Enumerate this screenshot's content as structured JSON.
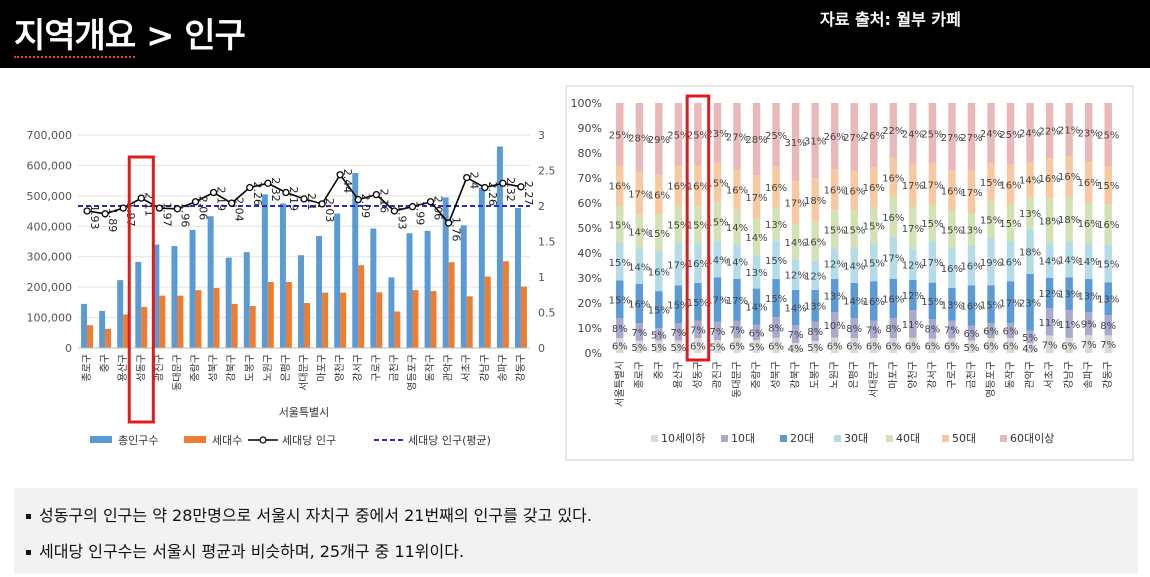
{
  "header": {
    "title_main": "지역개요",
    "title_rest": " > 인구",
    "source": "자료 출처: 월부 카페"
  },
  "chart_data": [
    {
      "type": "bar",
      "categories": [
        "종로구",
        "중구",
        "용산구",
        "성동구",
        "광진구",
        "동대문구",
        "중랑구",
        "성북구",
        "강북구",
        "도봉구",
        "노원구",
        "은평구",
        "서대문구",
        "마포구",
        "양천구",
        "강서구",
        "구로구",
        "금천구",
        "영등포구",
        "동작구",
        "관악구",
        "서초구",
        "강남구",
        "송파구",
        "강동구"
      ],
      "xlabel": "서울특별시",
      "ylim": [
        0,
        700000
      ],
      "y2lim": [
        0,
        3
      ],
      "yticks": [
        "0",
        "100,000",
        "200,000",
        "300,000",
        "400,000",
        "500,000",
        "600,000",
        "700,000"
      ],
      "y2ticks": [
        "0",
        "0.5",
        "1",
        "1.5",
        "2",
        "2.5",
        "3"
      ],
      "series": [
        {
          "name": "총인구수",
          "kind": "bar",
          "color": "#5b9bd5",
          "values": [
            145000,
            122000,
            223000,
            283000,
            340000,
            335000,
            388000,
            433000,
            297000,
            315000,
            505000,
            475000,
            305000,
            368000,
            442000,
            575000,
            393000,
            232000,
            377000,
            385000,
            495000,
            403000,
            527000,
            662000,
            460000
          ]
        },
        {
          "name": "세대수",
          "kind": "bar",
          "color": "#ed7d31",
          "values": [
            75000,
            63000,
            110000,
            135000,
            172000,
            172000,
            190000,
            197000,
            145000,
            138000,
            217000,
            217000,
            148000,
            182000,
            182000,
            272000,
            183000,
            120000,
            190000,
            187000,
            282000,
            170000,
            235000,
            285000,
            202000
          ]
        },
        {
          "name": "세대당 인구",
          "kind": "line",
          "axis": "right",
          "color": "#000000",
          "values": [
            1.93,
            1.89,
            1.97,
            2.11,
            1.97,
            1.96,
            2.06,
            2.19,
            2.04,
            2.26,
            2.32,
            2.19,
            2.1,
            2.03,
            2.44,
            2.09,
            2.16,
            1.93,
            1.99,
            2.06,
            1.76,
            2.4,
            2.26,
            2.32,
            2.27
          ]
        },
        {
          "name": "세대당 인구(평균)",
          "kind": "dashed",
          "axis": "right",
          "color": "#2b2bbf",
          "value": 2.0
        }
      ],
      "data_labels": [
        "1.93",
        "1.89",
        "1.97",
        "2.11",
        "1.97",
        "1.96",
        "2.06",
        "2.19",
        "2.04",
        "2.26",
        "2.32",
        "2.19",
        "2.1",
        "2.03",
        "2.44",
        "2.09",
        "2.16",
        "1.93",
        "1.99",
        "2.06",
        "1.76",
        "2.4",
        "2.26",
        "2.32",
        "2.27"
      ],
      "highlight_category": "성동구",
      "legend_position": "bottom"
    },
    {
      "type": "bar",
      "stacked": true,
      "percent": true,
      "categories": [
        "서울특별시",
        "종로구",
        "중구",
        "용산구",
        "성동구",
        "광진구",
        "동대문구",
        "중랑구",
        "성북구",
        "강북구",
        "도봉구",
        "노원구",
        "은평구",
        "서대문구",
        "마포구",
        "양천구",
        "강서구",
        "구로구",
        "금천구",
        "영등포구",
        "동작구",
        "관악구",
        "서초구",
        "강남구",
        "송파구",
        "강동구"
      ],
      "yticks": [
        "0%",
        "10%",
        "20%",
        "30%",
        "40%",
        "50%",
        "60%",
        "70%",
        "80%",
        "90%",
        "100%"
      ],
      "series": [
        {
          "name": "10세이하",
          "color": "#d9d9d9",
          "values": [
            6,
            5,
            5,
            5,
            6,
            5,
            6,
            5,
            6,
            4,
            5,
            6,
            6,
            6,
            6,
            6,
            6,
            6,
            5,
            6,
            6,
            4,
            7,
            6,
            7,
            7
          ]
        },
        {
          "name": "10대",
          "color": "#a9a9cf",
          "values": [
            8,
            7,
            5,
            7,
            7,
            7,
            7,
            6,
            8,
            7,
            8,
            10,
            8,
            7,
            8,
            11,
            8,
            7,
            6,
            6,
            6,
            5,
            11,
            11,
            9,
            8
          ]
        },
        {
          "name": "20대",
          "color": "#5b9bd5",
          "values": [
            15,
            16,
            15,
            15,
            15,
            17,
            17,
            14,
            15,
            14,
            13,
            13,
            14,
            16,
            16,
            12,
            15,
            13,
            16,
            15,
            17,
            23,
            12,
            13,
            13,
            13
          ]
        },
        {
          "name": "30대",
          "color": "#b4dbe8",
          "values": [
            15,
            14,
            16,
            17,
            16,
            14,
            14,
            13,
            15,
            12,
            12,
            12,
            14,
            15,
            17,
            12,
            17,
            16,
            16,
            19,
            16,
            18,
            14,
            14,
            14,
            15
          ]
        },
        {
          "name": "40대",
          "color": "#d3e2b4",
          "values": [
            15,
            14,
            15,
            15,
            15,
            15,
            14,
            14,
            13,
            14,
            16,
            15,
            15,
            15,
            16,
            17,
            15,
            15,
            13,
            15,
            15,
            13,
            18,
            18,
            16,
            16
          ]
        },
        {
          "name": "50대",
          "color": "#f8c8a0",
          "values": [
            16,
            17,
            16,
            16,
            16,
            15,
            16,
            17,
            16,
            17,
            18,
            16,
            16,
            16,
            16,
            17,
            17,
            16,
            17,
            15,
            16,
            14,
            16,
            16,
            16,
            15
          ]
        },
        {
          "name": "60대이상",
          "color": "#e9b9b9",
          "values": [
            25,
            28,
            29,
            25,
            25,
            23,
            27,
            28,
            25,
            31,
            31,
            26,
            27,
            26,
            22,
            24,
            25,
            27,
            27,
            24,
            25,
            24,
            22,
            21,
            23,
            25
          ]
        }
      ],
      "highlight_category": "성동구",
      "legend_position": "bottom"
    }
  ],
  "notes": [
    "성동구의 인구는 약 28만명으로 서울시 자치구 중에서 21번째의 인구를 갖고 있다.",
    "세대당 인구수는 서울시 평균과 비슷하며, 25개구 중 11위이다."
  ]
}
